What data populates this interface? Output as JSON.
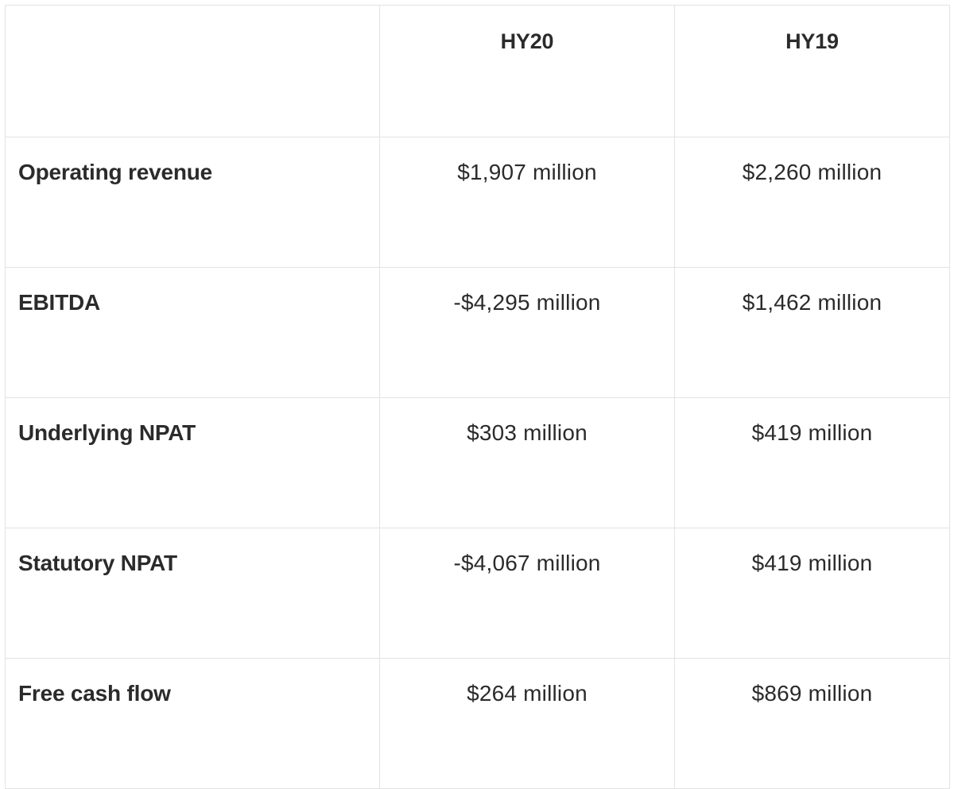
{
  "table": {
    "headers": [
      "",
      "HY20",
      "HY19"
    ],
    "rows": [
      {
        "label": "Operating revenue",
        "hy20": "$1,907 million",
        "hy19": "$2,260 million"
      },
      {
        "label": "EBITDA",
        "hy20": "-$4,295 million",
        "hy19": "$1,462 million"
      },
      {
        "label": "Underlying NPAT",
        "hy20": "$303 million",
        "hy19": "$419 million"
      },
      {
        "label": "Statutory NPAT",
        "hy20": "-$4,067 million",
        "hy19": "$419 million"
      },
      {
        "label": "Free cash flow",
        "hy20": "$264 million",
        "hy19": "$869 million"
      }
    ]
  },
  "colors": {
    "text": "#2b2b2b",
    "border": "#e3e3e3",
    "background": "#ffffff"
  }
}
